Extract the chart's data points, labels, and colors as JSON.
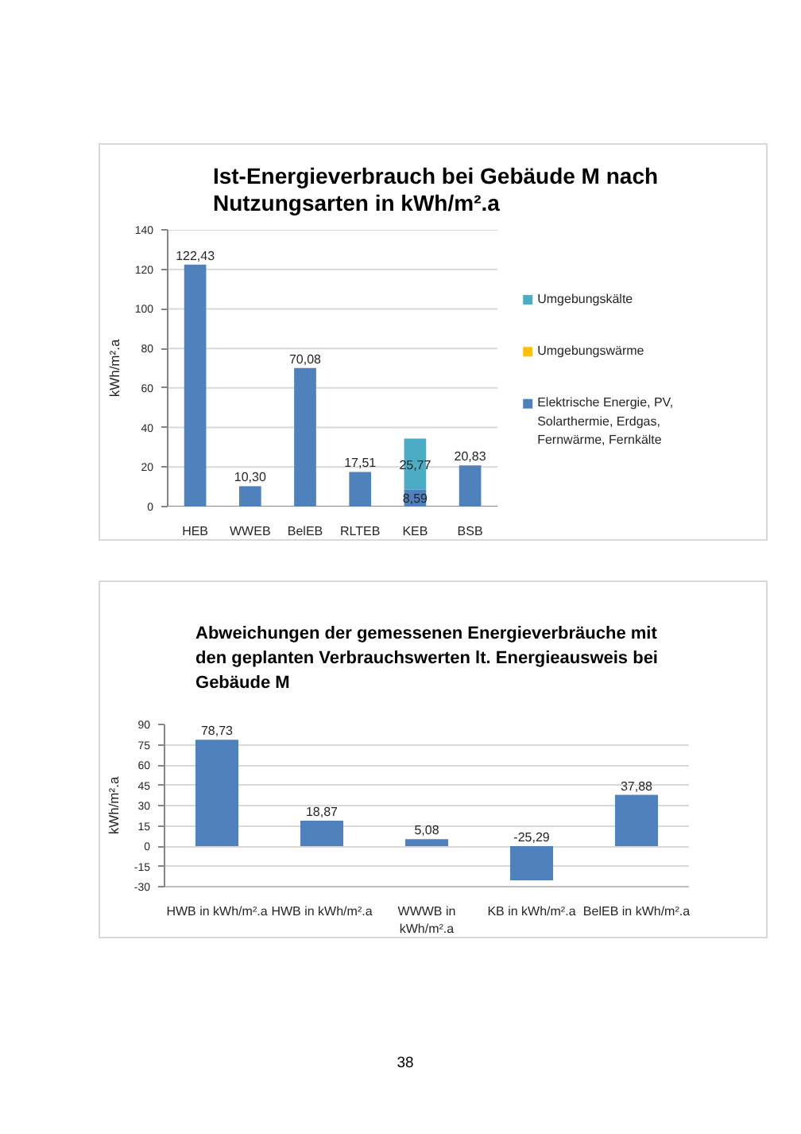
{
  "chart_data": [
    {
      "type": "bar",
      "title": "Ist-Energieverbrauch bei Gebäude M nach Nutzungsarten in kWh/m².a",
      "ylabel": "kWh/m².a",
      "categories": [
        "HEB",
        "WWEB",
        "BelEB",
        "RLTEB",
        "KEB",
        "BSB"
      ],
      "stacked": true,
      "series": [
        {
          "name": "Elektrische Energie, PV, Solarthermie, Erdgas, Fernwärme, Fernkälte",
          "color": "#4f81bd",
          "values": [
            122.43,
            10.3,
            70.08,
            17.51,
            8.59,
            20.83
          ],
          "value_labels": [
            "122,43",
            "10,30",
            "70,08",
            "17,51",
            "8,59",
            "20,83"
          ]
        },
        {
          "name": "Umgebungswärme",
          "color": "#ffc000",
          "values": [
            null,
            null,
            null,
            null,
            null,
            null
          ]
        },
        {
          "name": "Umgebungskälte",
          "color": "#4bacc6",
          "values": [
            null,
            null,
            null,
            null,
            25.77,
            null
          ],
          "value_labels": [
            null,
            null,
            null,
            null,
            "25,77",
            null
          ]
        }
      ],
      "ylim": [
        0,
        140
      ],
      "yticks": [
        0,
        20,
        40,
        60,
        80,
        100,
        120,
        140
      ],
      "grid": "y",
      "legend": "right"
    },
    {
      "type": "bar",
      "title": "Abweichungen der gemessenen Energieverbräuche mit den geplanten Verbrauchswerten lt. Energieausweis bei Gebäude M",
      "ylabel": "kWh/m².a",
      "categories": [
        "HWB in kWh/m².a",
        "HWB in kWh/m².a",
        "WWWB in kWh/m².a",
        "KB in kWh/m².a",
        "BelEB in kWh/m².a"
      ],
      "values": [
        78.73,
        18.87,
        5.08,
        -25.29,
        37.88
      ],
      "value_labels": [
        "78,73",
        "18,87",
        "5,08",
        "-25,29",
        "37,88"
      ],
      "color": "#4f81bd",
      "ylim": [
        -30,
        90
      ],
      "yticks": [
        -30,
        -15,
        0,
        15,
        30,
        45,
        60,
        75,
        90
      ],
      "grid": "y",
      "annotations": [
        "38"
      ]
    }
  ]
}
